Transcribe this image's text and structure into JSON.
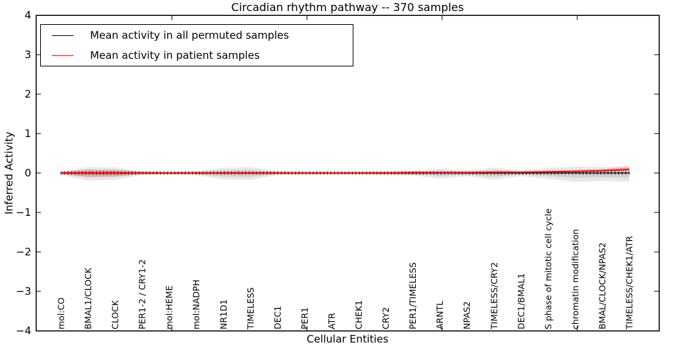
{
  "chart_data": {
    "type": "line",
    "title": "Circadian rhythm pathway -- 370 samples",
    "xlabel": "Cellular Entities",
    "ylabel": "Inferred Activity",
    "ylim": [
      -4,
      4
    ],
    "yticks": [
      4,
      3,
      2,
      1,
      0,
      -1,
      -2,
      -3,
      -4
    ],
    "yticklabels": [
      "4",
      "3",
      "2",
      "1",
      "0",
      "−1",
      "−2",
      "−3",
      "−4"
    ],
    "grid": false,
    "legend_position": "upper left",
    "categories": [
      "mol:CO",
      "BMAL1/CLOCK",
      "CLOCK",
      "PER1-2 / CRY1-2",
      "mol:HEME",
      "mol:NADPH",
      "NR1D1",
      "TIMELESS",
      "DEC1",
      "PER1",
      "ATR",
      "CHEK1",
      "CRY2",
      "PER1/TIMELESS",
      "ARNTL",
      "NPAS2",
      "TIMELESS/CRY2",
      "DEC1/BMAL1",
      "S phase of mitotic cell cycle",
      "chromatin modification",
      "BMAL/CLOCK/NPAS2",
      "TIMELESS/CHEK1/ATR"
    ],
    "series": [
      {
        "name": "Mean activity in all permuted samples",
        "color": "#000000",
        "band_color": "#808080",
        "values": [
          0,
          0,
          0,
          0,
          0,
          0,
          0,
          0,
          0,
          0,
          0,
          0,
          0,
          0,
          0,
          0,
          0,
          0,
          0,
          0,
          0,
          0
        ],
        "band_upper": [
          0.05,
          0.15,
          0.14,
          0.05,
          0.03,
          0.05,
          0.13,
          0.15,
          0.05,
          0.03,
          0.03,
          0.03,
          0.04,
          0.05,
          0.11,
          0.06,
          0.14,
          0.06,
          0.13,
          0.16,
          0.15,
          0.18
        ],
        "band_lower": [
          -0.05,
          -0.19,
          -0.17,
          -0.05,
          -0.04,
          -0.06,
          -0.16,
          -0.18,
          -0.05,
          -0.04,
          -0.04,
          -0.04,
          -0.05,
          -0.06,
          -0.14,
          -0.08,
          -0.17,
          -0.08,
          -0.15,
          -0.22,
          -0.2,
          -0.22
        ]
      },
      {
        "name": "Mean activity in patient samples",
        "color": "#ff0000",
        "band_color": "#ff0000",
        "values": [
          0,
          0,
          0,
          0,
          0,
          0,
          0,
          0,
          0,
          0,
          0,
          0,
          0,
          0.01,
          0.01,
          0.01,
          0.02,
          0.02,
          0.03,
          0.04,
          0.06,
          0.09
        ],
        "band_upper": [
          0.03,
          0.09,
          0.08,
          0.03,
          0.02,
          0.02,
          0.04,
          0.04,
          0.02,
          0.02,
          0.02,
          0.02,
          0.03,
          0.05,
          0.03,
          0.03,
          0.05,
          0.04,
          0.05,
          0.07,
          0.1,
          0.16
        ],
        "band_lower": [
          -0.03,
          -0.1,
          -0.09,
          -0.03,
          -0.02,
          -0.02,
          -0.04,
          -0.04,
          -0.02,
          -0.02,
          -0.02,
          -0.02,
          -0.03,
          -0.04,
          -0.02,
          -0.02,
          -0.03,
          -0.02,
          -0.01,
          0.0,
          0.02,
          0.04
        ]
      }
    ]
  }
}
